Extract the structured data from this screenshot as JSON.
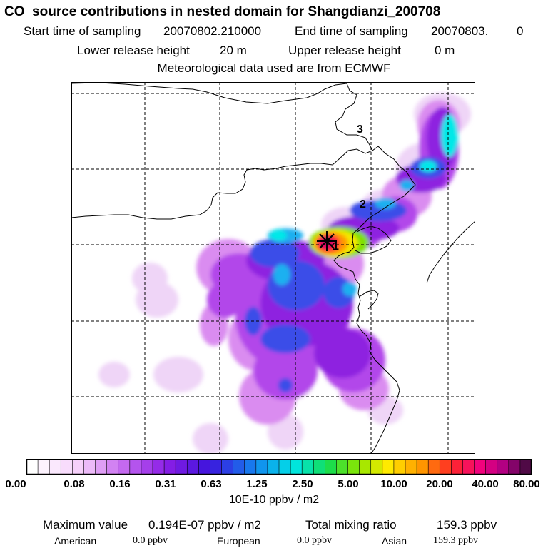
{
  "title": "CO  source contributions in nested domain for Shangdianzi_200708",
  "header": {
    "start_label": "Start time of sampling",
    "start_value": "20070802.210000",
    "end_label": "End time of sampling",
    "end_value": "20070803.",
    "end_extra": "0",
    "lower_label": "Lower release height",
    "lower_value": "20 m",
    "upper_label": "Upper release height",
    "upper_value": "0 m",
    "met_text": "Meteorological data used are from ECMWF"
  },
  "map": {
    "markers": [
      "1",
      "2",
      "3"
    ],
    "station_marker": "star-icon"
  },
  "colorbar": {
    "tick_labels": [
      "0.00",
      "0.08",
      "0.16",
      "0.31",
      "0.63",
      "1.25",
      "2.50",
      "5.00",
      "10.00",
      "20.00",
      "40.00",
      "80.00"
    ],
    "units": "10E-10 ppbv / m2"
  },
  "summary": {
    "max_label": "Maximum value",
    "max_value": "0.194E-07 ppbv / m2",
    "total_label": "Total mixing ratio",
    "total_value": "159.3 ppbv",
    "american_label": "American",
    "american_value": "0.0 ppbv",
    "european_label": "European",
    "european_value": "0.0 ppbv",
    "asian_label": "Asian",
    "asian_value": "159.3 ppbv"
  }
}
